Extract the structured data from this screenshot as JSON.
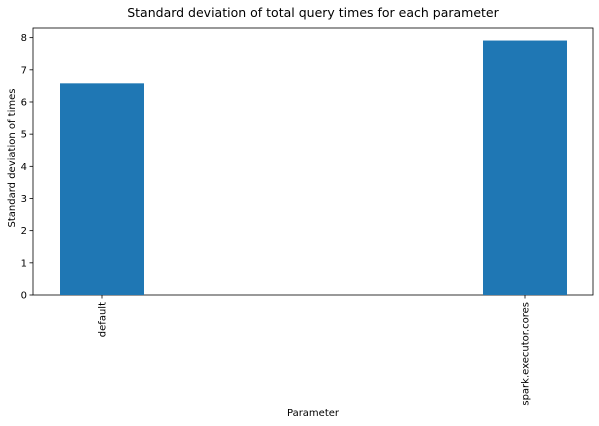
{
  "chart_data": {
    "type": "bar",
    "title": "Standard deviation of total query times for each parameter",
    "xlabel": "Parameter",
    "ylabel": "Standard deviation of times",
    "categories": [
      "default",
      "spark.executor.cores"
    ],
    "values": [
      6.58,
      7.91
    ],
    "ylim": [
      0,
      8.3
    ],
    "yticks": [
      0,
      1,
      2,
      3,
      4,
      5,
      6,
      7,
      8
    ],
    "grid": false,
    "bar_color": "#1f77b4"
  }
}
